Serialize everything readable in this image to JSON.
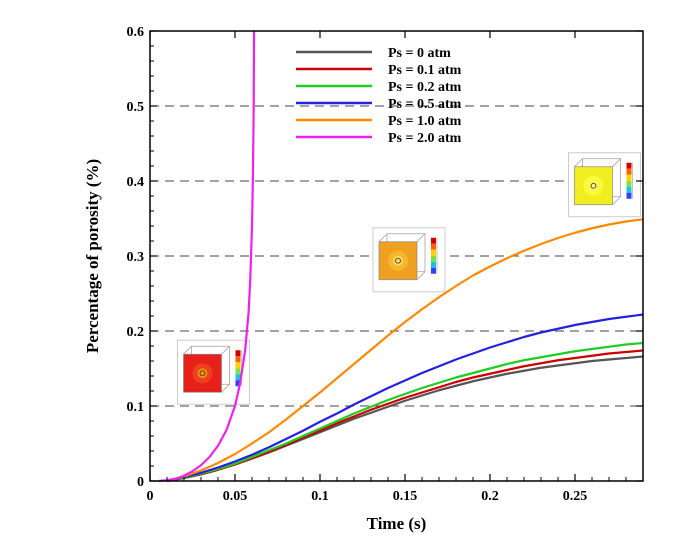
{
  "chart_data": {
    "type": "line",
    "xlabel": "Time (s)",
    "ylabel": "Percentage of porosity (%)",
    "xlim": [
      0,
      0.29
    ],
    "ylim": [
      0,
      0.6
    ],
    "xticks": [
      0,
      0.05,
      0.1,
      0.15,
      0.2,
      0.25
    ],
    "xtick_labels": [
      "0",
      "0.05",
      "0.1",
      "0.15",
      "0.2",
      "0.25"
    ],
    "yticks": [
      0,
      0.1,
      0.2,
      0.3,
      0.4,
      0.5,
      0.6
    ],
    "ytick_labels": [
      "0",
      "0.1",
      "0.2",
      "0.3",
      "0.4",
      "0.5",
      "0.6"
    ],
    "grid": "dashed horizontal lines at y = 0.1, 0.2, 0.3, 0.4, 0.5",
    "legend_position": "top-center",
    "series": [
      {
        "name": "Ps = 0 atm",
        "color": "#555555",
        "x": [
          0.01,
          0.02,
          0.03,
          0.04,
          0.05,
          0.06,
          0.07,
          0.08,
          0.09,
          0.1,
          0.11,
          0.12,
          0.13,
          0.14,
          0.15,
          0.16,
          0.17,
          0.18,
          0.19,
          0.2,
          0.21,
          0.22,
          0.23,
          0.24,
          0.25,
          0.26,
          0.27,
          0.28,
          0.29
        ],
        "y": [
          0.0,
          0.004,
          0.009,
          0.015,
          0.022,
          0.03,
          0.038,
          0.047,
          0.056,
          0.065,
          0.074,
          0.083,
          0.091,
          0.099,
          0.107,
          0.114,
          0.121,
          0.127,
          0.133,
          0.138,
          0.143,
          0.147,
          0.151,
          0.154,
          0.157,
          0.16,
          0.162,
          0.164,
          0.166
        ]
      },
      {
        "name": "Ps = 0.1 atm",
        "color": "#cc0000",
        "x": [
          0.01,
          0.02,
          0.03,
          0.04,
          0.05,
          0.06,
          0.07,
          0.08,
          0.09,
          0.1,
          0.11,
          0.12,
          0.13,
          0.14,
          0.15,
          0.16,
          0.17,
          0.18,
          0.19,
          0.2,
          0.21,
          0.22,
          0.23,
          0.24,
          0.25,
          0.26,
          0.27,
          0.28,
          0.29
        ],
        "y": [
          0.0,
          0.004,
          0.009,
          0.015,
          0.022,
          0.03,
          0.039,
          0.048,
          0.058,
          0.067,
          0.077,
          0.086,
          0.095,
          0.103,
          0.111,
          0.118,
          0.125,
          0.132,
          0.138,
          0.143,
          0.148,
          0.153,
          0.157,
          0.161,
          0.164,
          0.167,
          0.17,
          0.172,
          0.174
        ]
      },
      {
        "name": "Ps = 0.2 atm",
        "color": "#22cc22",
        "x": [
          0.01,
          0.02,
          0.03,
          0.04,
          0.05,
          0.06,
          0.07,
          0.08,
          0.09,
          0.1,
          0.11,
          0.12,
          0.13,
          0.14,
          0.15,
          0.16,
          0.17,
          0.18,
          0.19,
          0.2,
          0.21,
          0.22,
          0.23,
          0.24,
          0.25,
          0.26,
          0.27,
          0.28,
          0.29
        ],
        "y": [
          0.0,
          0.004,
          0.01,
          0.016,
          0.023,
          0.032,
          0.041,
          0.05,
          0.06,
          0.07,
          0.08,
          0.09,
          0.099,
          0.108,
          0.116,
          0.124,
          0.131,
          0.138,
          0.144,
          0.15,
          0.156,
          0.161,
          0.165,
          0.169,
          0.173,
          0.176,
          0.179,
          0.182,
          0.184
        ]
      },
      {
        "name": "Ps = 0.5 atm",
        "color": "#2222dd",
        "x": [
          0.01,
          0.02,
          0.03,
          0.04,
          0.05,
          0.06,
          0.07,
          0.08,
          0.09,
          0.1,
          0.11,
          0.12,
          0.13,
          0.14,
          0.15,
          0.16,
          0.17,
          0.18,
          0.19,
          0.2,
          0.21,
          0.22,
          0.23,
          0.24,
          0.25,
          0.26,
          0.27,
          0.28,
          0.29
        ],
        "y": [
          0.0,
          0.005,
          0.011,
          0.018,
          0.026,
          0.035,
          0.045,
          0.056,
          0.067,
          0.079,
          0.09,
          0.102,
          0.113,
          0.124,
          0.134,
          0.144,
          0.153,
          0.162,
          0.17,
          0.178,
          0.185,
          0.192,
          0.198,
          0.203,
          0.208,
          0.212,
          0.216,
          0.219,
          0.222
        ]
      },
      {
        "name": "Ps = 1.0 atm",
        "color": "#ff8800",
        "x": [
          0.01,
          0.02,
          0.03,
          0.04,
          0.05,
          0.06,
          0.07,
          0.08,
          0.09,
          0.1,
          0.11,
          0.12,
          0.13,
          0.14,
          0.15,
          0.16,
          0.17,
          0.18,
          0.19,
          0.2,
          0.21,
          0.22,
          0.23,
          0.24,
          0.25,
          0.26,
          0.27,
          0.28,
          0.29
        ],
        "y": [
          0.0,
          0.006,
          0.014,
          0.024,
          0.036,
          0.05,
          0.065,
          0.082,
          0.1,
          0.118,
          0.137,
          0.156,
          0.175,
          0.194,
          0.212,
          0.229,
          0.245,
          0.26,
          0.274,
          0.286,
          0.297,
          0.307,
          0.316,
          0.324,
          0.331,
          0.337,
          0.342,
          0.346,
          0.349
        ]
      },
      {
        "name": "Ps = 2.0 atm",
        "color": "#ee22ee",
        "x": [
          0.005,
          0.01,
          0.015,
          0.02,
          0.025,
          0.03,
          0.035,
          0.04,
          0.045,
          0.05,
          0.053,
          0.056,
          0.058,
          0.059,
          0.06,
          0.0605,
          0.061,
          0.0612
        ],
        "y": [
          0.0,
          0.001,
          0.003,
          0.007,
          0.013,
          0.021,
          0.032,
          0.047,
          0.068,
          0.1,
          0.13,
          0.175,
          0.225,
          0.27,
          0.34,
          0.4,
          0.5,
          0.6
        ]
      }
    ],
    "insets": [
      {
        "name": "inset-red",
        "near_x": 0.035,
        "near_y": 0.145,
        "colors": [
          "#e8201a",
          "#f05020",
          "#f5a000",
          "#ffdd00"
        ]
      },
      {
        "name": "inset-orange",
        "near_x": 0.15,
        "near_y": 0.295,
        "colors": [
          "#f0a020",
          "#f5c030",
          "#ffe060",
          "#ffff60"
        ]
      },
      {
        "name": "inset-yellow",
        "near_x": 0.265,
        "near_y": 0.395,
        "colors": [
          "#f0ee20",
          "#ffff40",
          "#fff080",
          "#ffffa0"
        ]
      }
    ]
  }
}
